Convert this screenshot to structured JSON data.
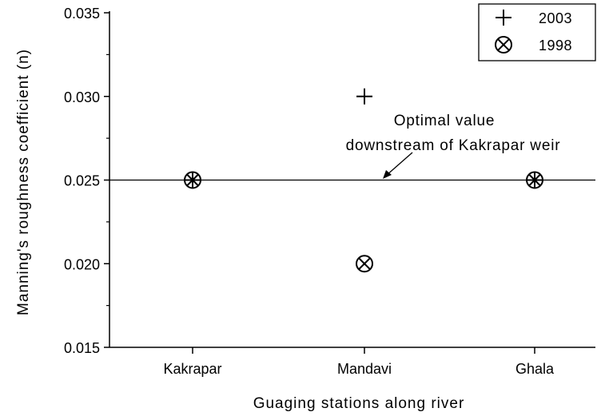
{
  "chart_data": {
    "type": "scatter",
    "title": "",
    "xlabel": "Guaging stations along river",
    "ylabel": "Manning's roughness coefficient (n)",
    "categories": [
      "Kakrapar",
      "Mandavi",
      "Ghala"
    ],
    "ylim": [
      0.015,
      0.035
    ],
    "yticks": [
      "0.015",
      "0.020",
      "0.025",
      "0.030",
      "0.035"
    ],
    "grid": false,
    "legend_position": "top-right",
    "series": [
      {
        "name": "2003",
        "marker": "plus",
        "values": [
          0.025,
          0.03,
          0.025
        ]
      },
      {
        "name": "1998",
        "marker": "circle-x",
        "values": [
          0.025,
          0.02,
          0.025
        ]
      }
    ],
    "reference_line": {
      "y": 0.025
    },
    "annotation": {
      "lines": [
        "Optimal value",
        "downstream of Kakrapar weir"
      ]
    }
  }
}
